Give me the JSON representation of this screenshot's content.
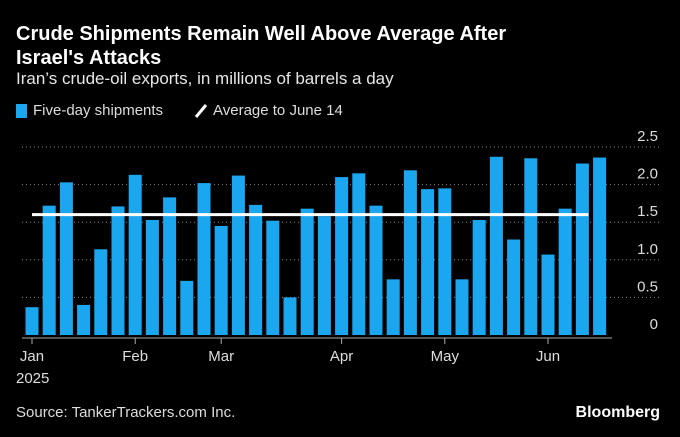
{
  "chart_data": {
    "type": "bar",
    "title": "Crude Shipments Remain Well Above Average After Israel's Attacks",
    "subtitle": "Iran’s crude-oil exports, in millions of barrels a day",
    "source": "Source: TankerTrackers.com Inc.",
    "brand": "Bloomberg",
    "categories": [
      null,
      null,
      null,
      null,
      null,
      null,
      null,
      null,
      null,
      null,
      null,
      null,
      null,
      null,
      null,
      null,
      null,
      null,
      null,
      null,
      null,
      null,
      null,
      null,
      null,
      null,
      null,
      null,
      null,
      null,
      null,
      null,
      null,
      null
    ],
    "xticks": [
      {
        "value": 0,
        "label": "Jan"
      },
      {
        "value": 6,
        "label": "Feb"
      },
      {
        "value": 11,
        "label": "Mar"
      },
      {
        "value": 18,
        "label": "Apr"
      },
      {
        "value": 24,
        "label": "May"
      },
      {
        "value": 30,
        "label": "Jun"
      }
    ],
    "year_label": "2025",
    "series": [
      {
        "name": "Five-day shipments",
        "color": "#1ba6f0",
        "values": [
          0.37,
          1.72,
          2.03,
          0.4,
          1.14,
          1.71,
          2.13,
          1.53,
          1.83,
          0.72,
          2.02,
          1.45,
          2.12,
          1.73,
          1.52,
          0.5,
          1.68,
          1.58,
          2.1,
          2.15,
          1.72,
          0.74,
          2.19,
          1.94,
          1.95,
          0.74,
          1.53,
          2.37,
          1.27,
          2.35,
          1.07,
          1.68,
          2.28,
          2.36
        ]
      }
    ],
    "reference": {
      "name": "Average to June 14",
      "color": "#ffffff",
      "value": 1.6
    },
    "ylim": [
      0,
      2.5
    ],
    "yticks": [
      0,
      0.5,
      {
        "value": 1,
        "label": "1.0"
      },
      1.5,
      {
        "value": 2,
        "label": "2.0"
      },
      2.5
    ],
    "y_axis_side": "right",
    "grid": true
  }
}
